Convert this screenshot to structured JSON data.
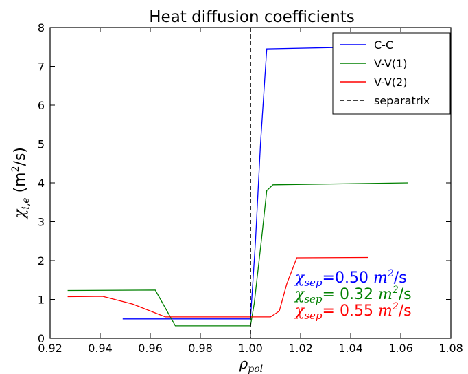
{
  "chart_data": {
    "type": "line",
    "title": "Heat diffusion coefficients",
    "xlabel": {
      "symbol": "ρ",
      "sub": "pol"
    },
    "ylabel": {
      "symbol": "χ",
      "sub": "i,e",
      "unit_pre": " (m",
      "unit_sup": "2",
      "unit_post": "/s)"
    },
    "xlim": [
      0.92,
      1.08
    ],
    "ylim": [
      0,
      8
    ],
    "x_ticks": [
      0.92,
      0.94,
      0.96,
      0.98,
      1.0,
      1.02,
      1.04,
      1.06,
      1.08
    ],
    "x_tick_labels": [
      "0.92",
      "0.94",
      "0.96",
      "0.98",
      "1.00",
      "1.02",
      "1.04",
      "1.06",
      "1.08"
    ],
    "y_ticks": [
      0,
      1,
      2,
      3,
      4,
      5,
      6,
      7,
      8
    ],
    "y_tick_labels": [
      "0",
      "1",
      "2",
      "3",
      "4",
      "5",
      "6",
      "7",
      "8"
    ],
    "grid": false,
    "legend_position": "top-right",
    "series": [
      {
        "name": "C-C",
        "color": "#0000ff",
        "style": "solid",
        "points": [
          [
            0.949,
            0.5
          ],
          [
            1.0,
            0.5
          ],
          [
            1.002,
            2.5
          ],
          [
            1.004,
            5.0
          ],
          [
            1.0065,
            7.45
          ],
          [
            1.045,
            7.5
          ]
        ]
      },
      {
        "name": "V-V(1)",
        "color": "#008000",
        "style": "solid",
        "points": [
          [
            0.927,
            1.23
          ],
          [
            0.962,
            1.24
          ],
          [
            0.97,
            0.32
          ],
          [
            1.0,
            0.32
          ],
          [
            1.0015,
            0.9
          ],
          [
            1.0045,
            2.6
          ],
          [
            1.0065,
            3.8
          ],
          [
            1.009,
            3.95
          ],
          [
            1.063,
            4.0
          ]
        ]
      },
      {
        "name": "V-V(2)",
        "color": "#ff0000",
        "style": "solid",
        "points": [
          [
            0.927,
            1.07
          ],
          [
            0.941,
            1.08
          ],
          [
            0.953,
            0.88
          ],
          [
            0.966,
            0.55
          ],
          [
            1.0,
            0.55
          ],
          [
            1.008,
            0.55
          ],
          [
            1.0115,
            0.7
          ],
          [
            1.0145,
            1.4
          ],
          [
            1.0185,
            2.07
          ],
          [
            1.047,
            2.08
          ]
        ]
      },
      {
        "name": "separatrix",
        "color": "#000000",
        "style": "dashed",
        "vertical_x": 1.0
      }
    ],
    "annotations": [
      {
        "symbol": "χ",
        "sub": "sep",
        "pre": "=0.50 ",
        "unit": "m",
        "sup": "2",
        "post": "/s",
        "color": "#0000ff"
      },
      {
        "symbol": "χ",
        "sub": "sep",
        "pre": "= 0.32 ",
        "unit": "m",
        "sup": "2",
        "post": "/s",
        "color": "#008000"
      },
      {
        "symbol": "χ",
        "sub": "sep",
        "pre": "= 0.55 ",
        "unit": "m",
        "sup": "2",
        "post": "/s",
        "color": "#ff0000"
      }
    ]
  }
}
